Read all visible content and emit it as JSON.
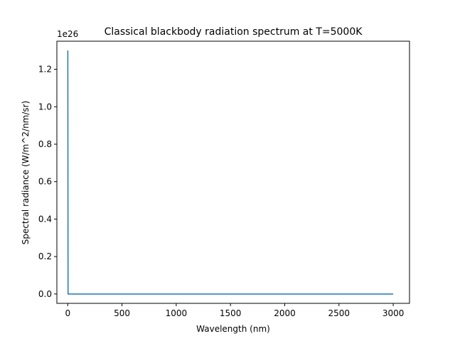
{
  "chart_data": {
    "type": "line",
    "title": "Classical blackbody radiation spectrum at T=5000K",
    "xlabel": "Wavelength (nm)",
    "ylabel": "Spectral radiance (W/m^2/nm/sr)",
    "y_offset_label": "1e26",
    "xlim": [
      -100,
      3150
    ],
    "ylim": [
      -0.05,
      1.35
    ],
    "xticks": [
      0,
      500,
      1000,
      1500,
      2000,
      2500,
      3000
    ],
    "xtick_labels": [
      "0",
      "500",
      "1000",
      "1500",
      "2000",
      "2500",
      "3000"
    ],
    "yticks": [
      0.0,
      0.2,
      0.4,
      0.6,
      0.8,
      1.0,
      1.2
    ],
    "ytick_labels": [
      "0.0",
      "0.2",
      "0.4",
      "0.6",
      "0.8",
      "1.0",
      "1.2"
    ],
    "grid": false,
    "series": [
      {
        "color": "#1f77b4",
        "x": [
          1,
          3,
          5,
          10,
          100,
          500,
          1000,
          1500,
          2000,
          2500,
          3000
        ],
        "y": [
          1.3,
          0.0,
          0.0,
          0.0,
          0.0,
          0.0,
          0.0,
          0.0,
          0.0,
          0.0,
          0.0
        ]
      }
    ]
  }
}
